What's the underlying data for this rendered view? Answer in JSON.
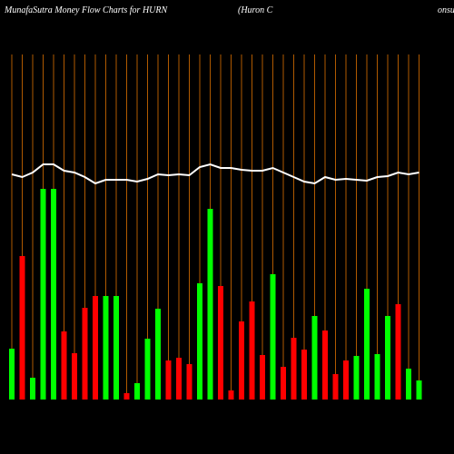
{
  "chart_data": {
    "type": "bar",
    "title": "MunafaSutra  Money Flow  Charts for HURN",
    "subtitle": "(Huron  C",
    "subtitle_tail": "onsu",
    "bar_colors": {
      "up": "#00ff00",
      "down": "#ff0000"
    },
    "line_color": "#ffffff",
    "gridline_color": "#b05a00",
    "ylim": [
      0,
      380
    ],
    "series": [
      {
        "name": "money flow",
        "values": [
          56,
          158,
          24,
          232,
          232,
          75,
          51,
          101,
          114,
          114,
          114,
          7,
          18,
          67,
          100,
          43,
          46,
          39,
          128,
          210,
          125,
          10,
          86,
          108,
          49,
          138,
          36,
          68,
          55,
          92,
          76,
          28,
          43,
          48,
          122,
          50,
          92,
          105,
          34,
          21
        ],
        "directions": [
          "up",
          "down",
          "up",
          "up",
          "up",
          "down",
          "down",
          "down",
          "down",
          "up",
          "up",
          "down",
          "up",
          "up",
          "up",
          "down",
          "down",
          "down",
          "up",
          "up",
          "down",
          "down",
          "down",
          "down",
          "down",
          "up",
          "down",
          "down",
          "down",
          "up",
          "down",
          "down",
          "down",
          "up",
          "up",
          "up",
          "up",
          "down",
          "up",
          "up"
        ]
      },
      {
        "name": "trend",
        "values": [
          248,
          245,
          250,
          259,
          259,
          252,
          250,
          245,
          238,
          242,
          242,
          242,
          240,
          243,
          248,
          247,
          248,
          247,
          256,
          259,
          255,
          255,
          253,
          252,
          252,
          255,
          250,
          245,
          240,
          238,
          245,
          242,
          243,
          242,
          241,
          245,
          246,
          250,
          248,
          250
        ]
      }
    ]
  }
}
